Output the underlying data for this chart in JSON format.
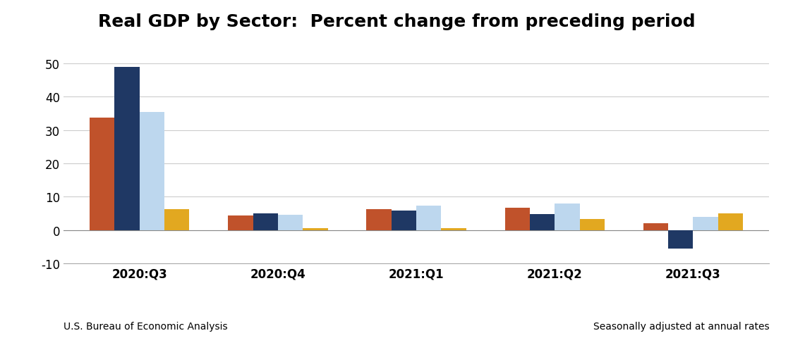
{
  "title": "Real GDP by Sector:  Percent change from preceding period",
  "categories": [
    "2020:Q3",
    "2020:Q4",
    "2021:Q1",
    "2021:Q2",
    "2021:Q3"
  ],
  "series": {
    "GDP": [
      33.8,
      4.3,
      6.3,
      6.7,
      2.1
    ],
    "Private Goods": [
      49.0,
      5.1,
      5.9,
      4.9,
      -5.5
    ],
    "Private Services": [
      35.5,
      4.6,
      7.3,
      7.9,
      4.0
    ],
    "Government": [
      6.2,
      0.7,
      0.7,
      3.3,
      5.0
    ]
  },
  "colors": {
    "GDP": "#C0522B",
    "Private Goods": "#1F3864",
    "Private Services": "#BDD7EE",
    "Government": "#E2A820"
  },
  "ylim": [
    -10,
    55
  ],
  "yticks": [
    -10,
    0,
    10,
    20,
    30,
    40,
    50
  ],
  "footer_left": "U.S. Bureau of Economic Analysis",
  "footer_right": "Seasonally adjusted at annual rates",
  "bar_width": 0.18,
  "background_color": "#ffffff",
  "grid_color": "#cccccc",
  "title_fontsize": 18,
  "legend_fontsize": 12,
  "tick_fontsize": 12,
  "footer_fontsize": 10
}
